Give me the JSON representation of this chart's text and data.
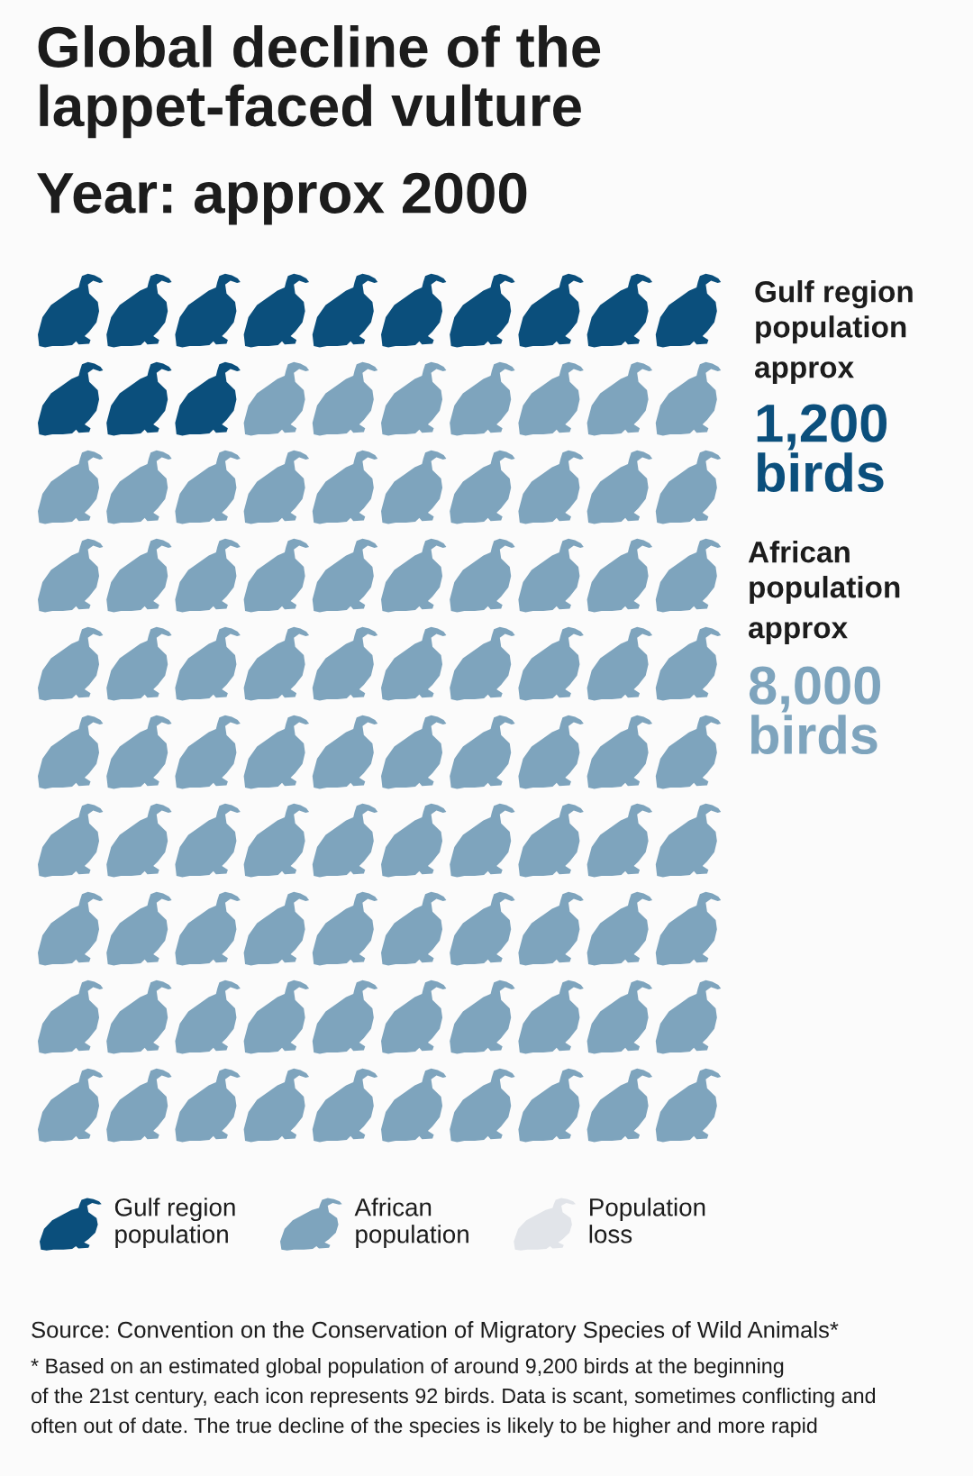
{
  "chart_data": {
    "type": "other",
    "title": "Global decline of the\nlappet-faced vulture",
    "subtitle": "Year: approx 2000",
    "series": [
      {
        "name": "Gulf region\npopulation",
        "color": "#0b4f7c",
        "values": [
          1200
        ],
        "value_labels": [
          "1,200\nbirds"
        ]
      },
      {
        "name": "African\npopulation",
        "color": "#7ea4bd",
        "values": [
          8000
        ],
        "value_labels": [
          "8,000\nbirds"
        ]
      },
      {
        "name": "Population\nloss",
        "color": "#e1e4e9",
        "values": [
          null
        ]
      }
    ],
    "legend": "bottom",
    "annotations": [
      "approx",
      "approx",
      "Source: Convention on the Conservation of Migratory Species of Wild Animals*",
      "* Based on an estimated global population of around 9,200 birds at the beginning\nof the 21st century, each icon represents 92 birds. Data is scant, sometimes conflicting and\noften out of date. The true decline of the species is likely to be higher and more rapid"
    ]
  }
}
